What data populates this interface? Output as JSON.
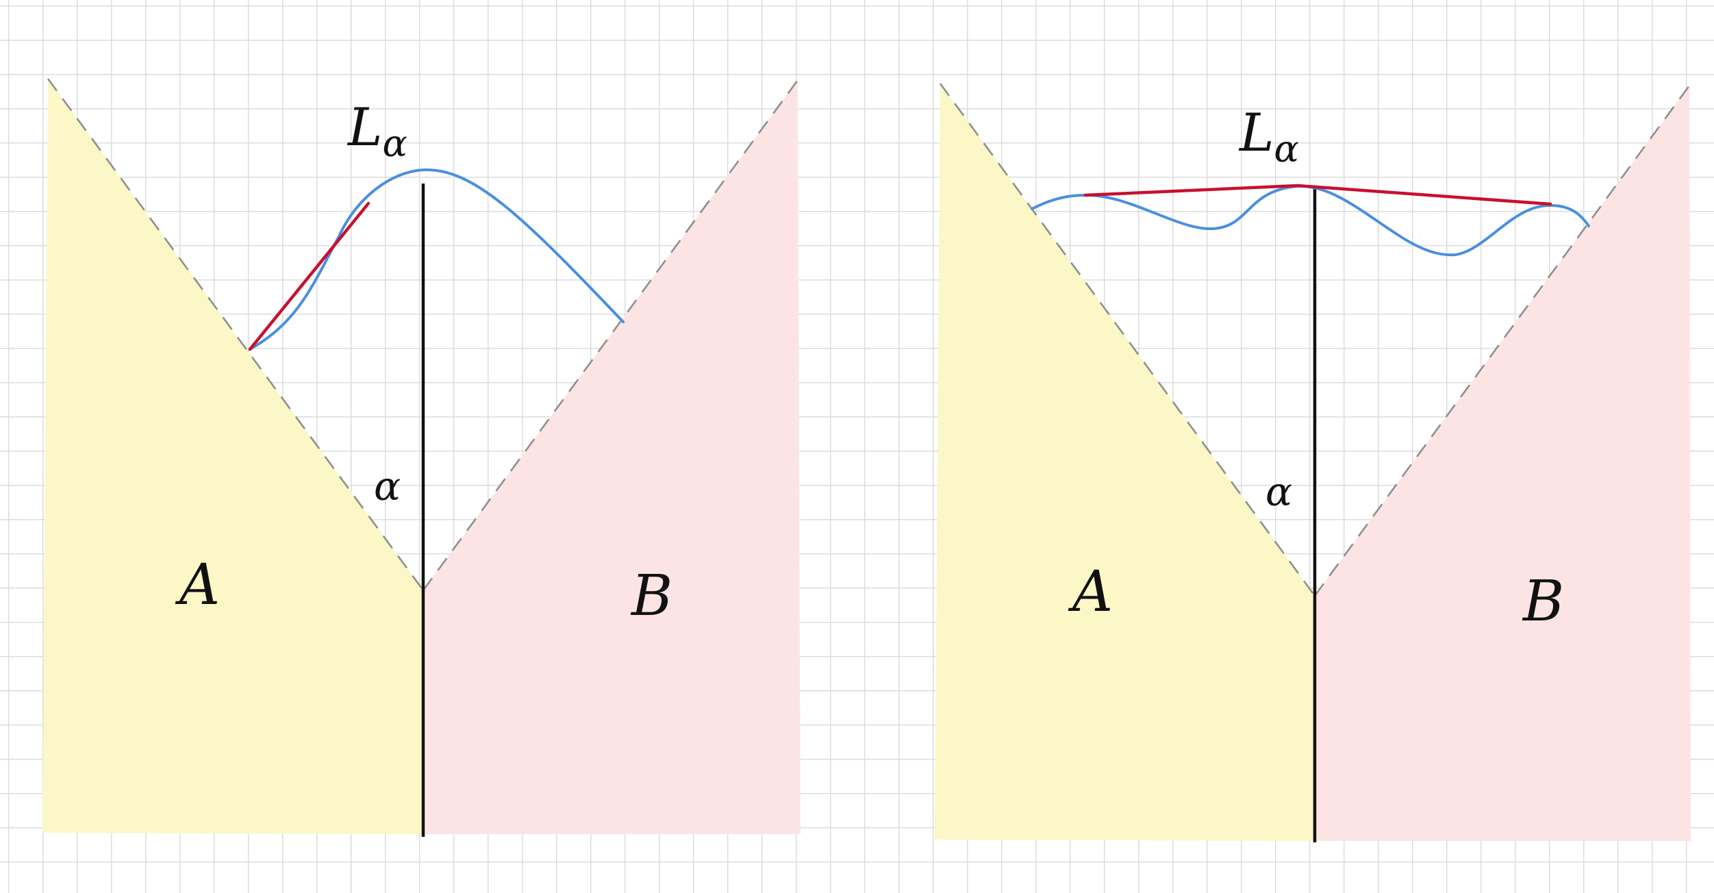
{
  "panels": [
    {
      "region_a_label": "A",
      "region_b_label": "B",
      "curve_label_base": "L",
      "curve_label_sub": "α",
      "angle_label": "α"
    },
    {
      "region_a_label": "A",
      "region_b_label": "B",
      "curve_label_base": "L",
      "curve_label_sub": "α",
      "angle_label": "α"
    }
  ],
  "colors": {
    "region_a": "#fbf7c6",
    "region_b": "#fde4e4",
    "curve": "#4a8fdf",
    "hull_segment": "#c8102e",
    "divider": "#111111",
    "wedge_edge": "#8f8f8f",
    "grid": "#dcdcdc"
  }
}
